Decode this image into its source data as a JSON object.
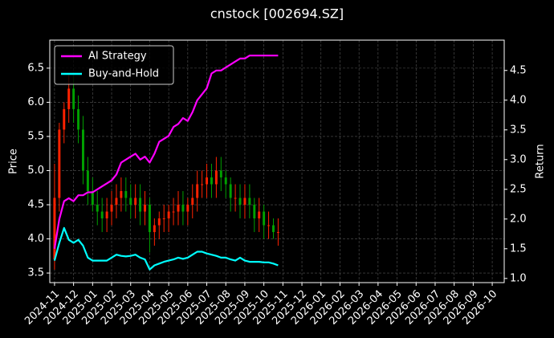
{
  "chart_data": {
    "type": "candlestick",
    "title": "cnstock [002694.SZ]",
    "ylabel": "Price",
    "y2label": "Return",
    "x": [
      0,
      0.25,
      0.5,
      0.75,
      1,
      1.25,
      1.5,
      1.75,
      2,
      2.25,
      2.5,
      2.75,
      3,
      3.25,
      3.5,
      3.75,
      4,
      4.25,
      4.5,
      4.75,
      5,
      5.25,
      5.5,
      5.75,
      6,
      6.25,
      6.5,
      6.75,
      7,
      7.25,
      7.5,
      7.75,
      8,
      8.25,
      8.5,
      8.75,
      9,
      9.25,
      9.5,
      9.75,
      10,
      10.25,
      10.5,
      10.75,
      11,
      11.25,
      11.5,
      11.75
    ],
    "open": [
      3.7,
      4.6,
      5.6,
      5.9,
      6.2,
      5.9,
      5.6,
      5.0,
      4.7,
      4.5,
      4.4,
      4.3,
      4.4,
      4.5,
      4.6,
      4.7,
      4.6,
      4.5,
      4.6,
      4.4,
      4.5,
      4.1,
      4.2,
      4.3,
      4.3,
      4.4,
      4.4,
      4.5,
      4.4,
      4.5,
      4.6,
      4.8,
      4.8,
      4.9,
      4.8,
      5.0,
      4.9,
      4.8,
      4.6,
      4.6,
      4.5,
      4.6,
      4.5,
      4.3,
      4.4,
      4.2,
      4.2,
      4.1
    ],
    "high": [
      5.1,
      5.7,
      6.0,
      6.4,
      6.4,
      6.1,
      5.8,
      5.2,
      4.9,
      4.7,
      4.6,
      4.6,
      4.7,
      4.8,
      4.9,
      4.9,
      4.8,
      4.8,
      4.8,
      4.7,
      4.6,
      4.3,
      4.4,
      4.5,
      4.5,
      4.6,
      4.7,
      4.7,
      4.6,
      4.8,
      5.0,
      5.0,
      5.1,
      5.1,
      5.2,
      5.2,
      5.0,
      4.9,
      4.8,
      4.8,
      4.8,
      4.8,
      4.6,
      4.6,
      4.5,
      4.4,
      4.3,
      4.3
    ],
    "low": [
      3.55,
      4.4,
      5.4,
      5.7,
      5.7,
      5.4,
      4.8,
      4.5,
      4.4,
      4.2,
      4.1,
      4.1,
      4.2,
      4.3,
      4.4,
      4.4,
      4.3,
      4.3,
      4.2,
      4.2,
      3.8,
      3.9,
      4.0,
      4.1,
      4.1,
      4.2,
      4.2,
      4.2,
      4.2,
      4.3,
      4.4,
      4.6,
      4.6,
      4.6,
      4.6,
      4.7,
      4.6,
      4.4,
      4.4,
      4.3,
      4.3,
      4.3,
      4.1,
      4.1,
      4.0,
      4.0,
      4.0,
      3.9
    ],
    "close": [
      4.6,
      5.6,
      5.9,
      6.2,
      5.9,
      5.6,
      5.0,
      4.7,
      4.5,
      4.4,
      4.3,
      4.4,
      4.5,
      4.6,
      4.7,
      4.6,
      4.5,
      4.6,
      4.4,
      4.5,
      4.1,
      4.2,
      4.3,
      4.3,
      4.4,
      4.4,
      4.5,
      4.4,
      4.5,
      4.6,
      4.8,
      4.8,
      4.9,
      4.8,
      5.0,
      4.9,
      4.8,
      4.6,
      4.6,
      4.5,
      4.6,
      4.5,
      4.3,
      4.4,
      4.2,
      4.2,
      4.1,
      4.1
    ],
    "up_color": "#ff2200",
    "down_color": "#00a000",
    "series": [
      {
        "name": "AI Strategy",
        "color": "#ff00ff",
        "axis": "y2",
        "values": [
          1.5,
          2.0,
          2.3,
          2.35,
          2.3,
          2.4,
          2.4,
          2.45,
          2.45,
          2.5,
          2.55,
          2.6,
          2.65,
          2.75,
          2.95,
          3.0,
          3.05,
          3.1,
          3.0,
          3.05,
          2.95,
          3.1,
          3.3,
          3.35,
          3.4,
          3.55,
          3.6,
          3.7,
          3.65,
          3.8,
          4.0,
          4.1,
          4.2,
          4.45,
          4.5,
          4.5,
          4.55,
          4.6,
          4.65,
          4.7,
          4.7,
          4.75,
          4.75,
          4.75,
          4.75,
          4.75,
          4.75,
          4.75
        ]
      },
      {
        "name": "Buy-and-Hold",
        "color": "#00ffff",
        "axis": "y2",
        "values": [
          1.3,
          1.6,
          1.85,
          1.65,
          1.6,
          1.65,
          1.55,
          1.35,
          1.3,
          1.3,
          1.3,
          1.3,
          1.35,
          1.4,
          1.38,
          1.37,
          1.38,
          1.4,
          1.35,
          1.32,
          1.15,
          1.22,
          1.25,
          1.28,
          1.3,
          1.32,
          1.35,
          1.33,
          1.35,
          1.4,
          1.45,
          1.45,
          1.42,
          1.4,
          1.38,
          1.35,
          1.35,
          1.32,
          1.3,
          1.35,
          1.3,
          1.28,
          1.28,
          1.28,
          1.27,
          1.27,
          1.25,
          1.22
        ]
      }
    ],
    "xlim": [
      -0.25,
      23.63
    ],
    "xticks": [
      {
        "value": 0,
        "label": "2024-11"
      },
      {
        "value": 1,
        "label": "2024-12"
      },
      {
        "value": 2,
        "label": "2025-01"
      },
      {
        "value": 3,
        "label": "2025-02"
      },
      {
        "value": 4,
        "label": "2025-03"
      },
      {
        "value": 5,
        "label": "2025-04"
      },
      {
        "value": 6,
        "label": "2025-05"
      },
      {
        "value": 7,
        "label": "2025-06"
      },
      {
        "value": 8,
        "label": "2025-07"
      },
      {
        "value": 9,
        "label": "2025-08"
      },
      {
        "value": 10,
        "label": "2025-09"
      },
      {
        "value": 11,
        "label": "2025-10"
      },
      {
        "value": 12,
        "label": "2025-11"
      },
      {
        "value": 13,
        "label": "2025-12"
      },
      {
        "value": 14,
        "label": "2026-01"
      },
      {
        "value": 15,
        "label": "2026-02"
      },
      {
        "value": 16,
        "label": "2026-03"
      },
      {
        "value": 17,
        "label": "2026-04"
      },
      {
        "value": 18,
        "label": "2026-05"
      },
      {
        "value": 19,
        "label": "2026-06"
      },
      {
        "value": 20,
        "label": "2026-07"
      },
      {
        "value": 21,
        "label": "2026-08"
      },
      {
        "value": 22,
        "label": "2026-09"
      },
      {
        "value": 23,
        "label": "2026-10"
      }
    ],
    "ylim": [
      3.36,
      6.91
    ],
    "yticks": [
      3.5,
      {
        "value": 4,
        "label": "4.0"
      },
      4.5,
      {
        "value": 5,
        "label": "5.0"
      },
      5.5,
      {
        "value": 6,
        "label": "6.0"
      },
      6.5
    ],
    "y2lim": [
      0.93,
      5.01
    ],
    "y2ticks": [
      {
        "value": 1,
        "label": "1.0"
      },
      1.5,
      {
        "value": 2,
        "label": "2.0"
      },
      2.5,
      {
        "value": 3,
        "label": "3.0"
      },
      3.5,
      {
        "value": 4,
        "label": "4.0"
      },
      4.5
    ],
    "grid": true,
    "legend": "upper-left"
  }
}
